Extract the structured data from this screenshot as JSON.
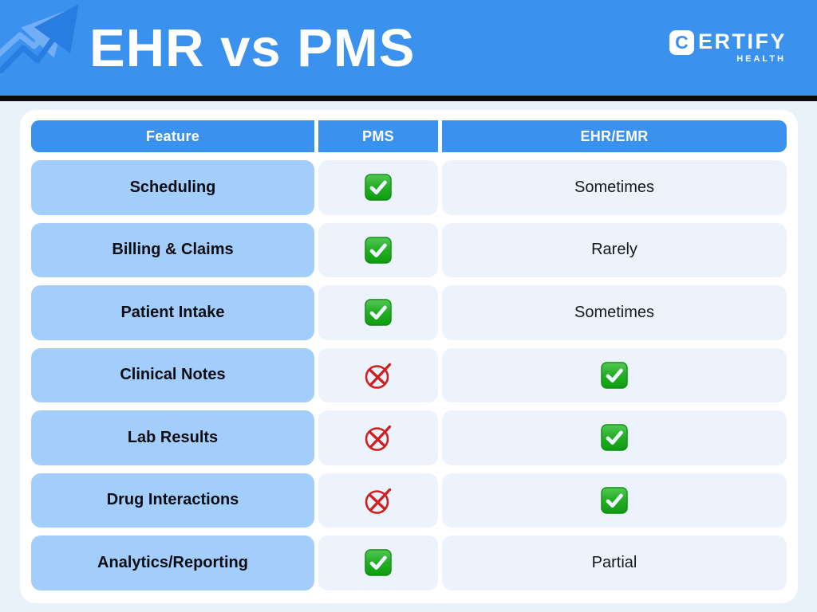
{
  "header": {
    "title": "EHR vs PMS",
    "logo": {
      "icon_letter": "C",
      "brand_text": "ERTIFY",
      "sub_text": "HEALTH"
    }
  },
  "colors": {
    "banner_blue": "#3b91ee",
    "feature_cell_blue": "#a3cefc",
    "value_cell_blue": "#ecf3fc",
    "page_background": "#e9f1fb",
    "divider_black": "#0b0b0c",
    "check_green": "#1ba71b",
    "cross_red": "#cf2020"
  },
  "table": {
    "columns": [
      "Feature",
      "PMS",
      "EHR/EMR"
    ],
    "rows": [
      {
        "feature": "Scheduling",
        "pms": "check",
        "ehr": "Sometimes"
      },
      {
        "feature": "Billing & Claims",
        "pms": "check",
        "ehr": "Rarely"
      },
      {
        "feature": "Patient Intake",
        "pms": "check",
        "ehr": "Sometimes"
      },
      {
        "feature": "Clinical Notes",
        "pms": "cross",
        "ehr": "check"
      },
      {
        "feature": "Lab Results",
        "pms": "cross",
        "ehr": "check"
      },
      {
        "feature": "Drug Interactions",
        "pms": "cross",
        "ehr": "check"
      },
      {
        "feature": "Analytics/Reporting",
        "pms": "check",
        "ehr": "Partial"
      }
    ]
  },
  "chart_data": {
    "type": "table",
    "title": "EHR vs PMS",
    "columns": [
      "Feature",
      "PMS",
      "EHR/EMR"
    ],
    "rows": [
      [
        "Scheduling",
        "yes",
        "Sometimes"
      ],
      [
        "Billing & Claims",
        "yes",
        "Rarely"
      ],
      [
        "Patient Intake",
        "yes",
        "Sometimes"
      ],
      [
        "Clinical Notes",
        "no",
        "yes"
      ],
      [
        "Lab Results",
        "no",
        "yes"
      ],
      [
        "Drug Interactions",
        "no",
        "yes"
      ],
      [
        "Analytics/Reporting",
        "yes",
        "Partial"
      ]
    ]
  }
}
